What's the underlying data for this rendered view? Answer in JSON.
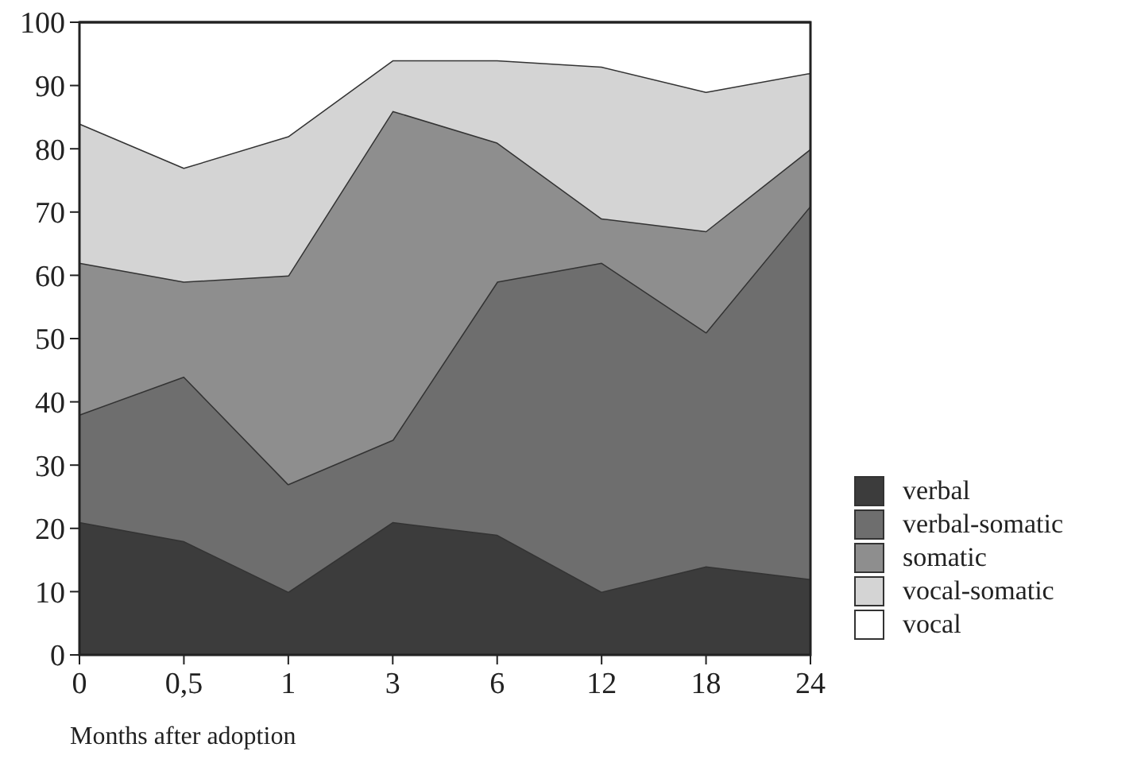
{
  "chart_data": {
    "type": "area",
    "stacked": true,
    "xlabel": "Months after adoption",
    "categories": [
      "0",
      "0,5",
      "1",
      "3",
      "6",
      "12",
      "18",
      "24"
    ],
    "ylim": [
      0,
      100
    ],
    "yticks": [
      0,
      10,
      20,
      30,
      40,
      50,
      60,
      70,
      80,
      90,
      100
    ],
    "legend": "right",
    "series": [
      {
        "name": "verbal",
        "color": "#3c3c3c",
        "values": [
          21,
          18,
          10,
          21,
          19,
          10,
          14,
          12
        ]
      },
      {
        "name": "verbal-somatic",
        "color": "#6e6e6e",
        "values": [
          17,
          26,
          17,
          13,
          40,
          52,
          37,
          59
        ]
      },
      {
        "name": "somatic",
        "color": "#8e8e8e",
        "values": [
          24,
          15,
          33,
          52,
          22,
          7,
          16,
          9
        ]
      },
      {
        "name": "vocal-somatic",
        "color": "#d4d4d4",
        "values": [
          22,
          18,
          22,
          8,
          13,
          24,
          22,
          12
        ]
      },
      {
        "name": "vocal",
        "color": "#ffffff",
        "values": [
          16,
          23,
          18,
          6,
          6,
          7,
          11,
          8
        ]
      }
    ]
  }
}
